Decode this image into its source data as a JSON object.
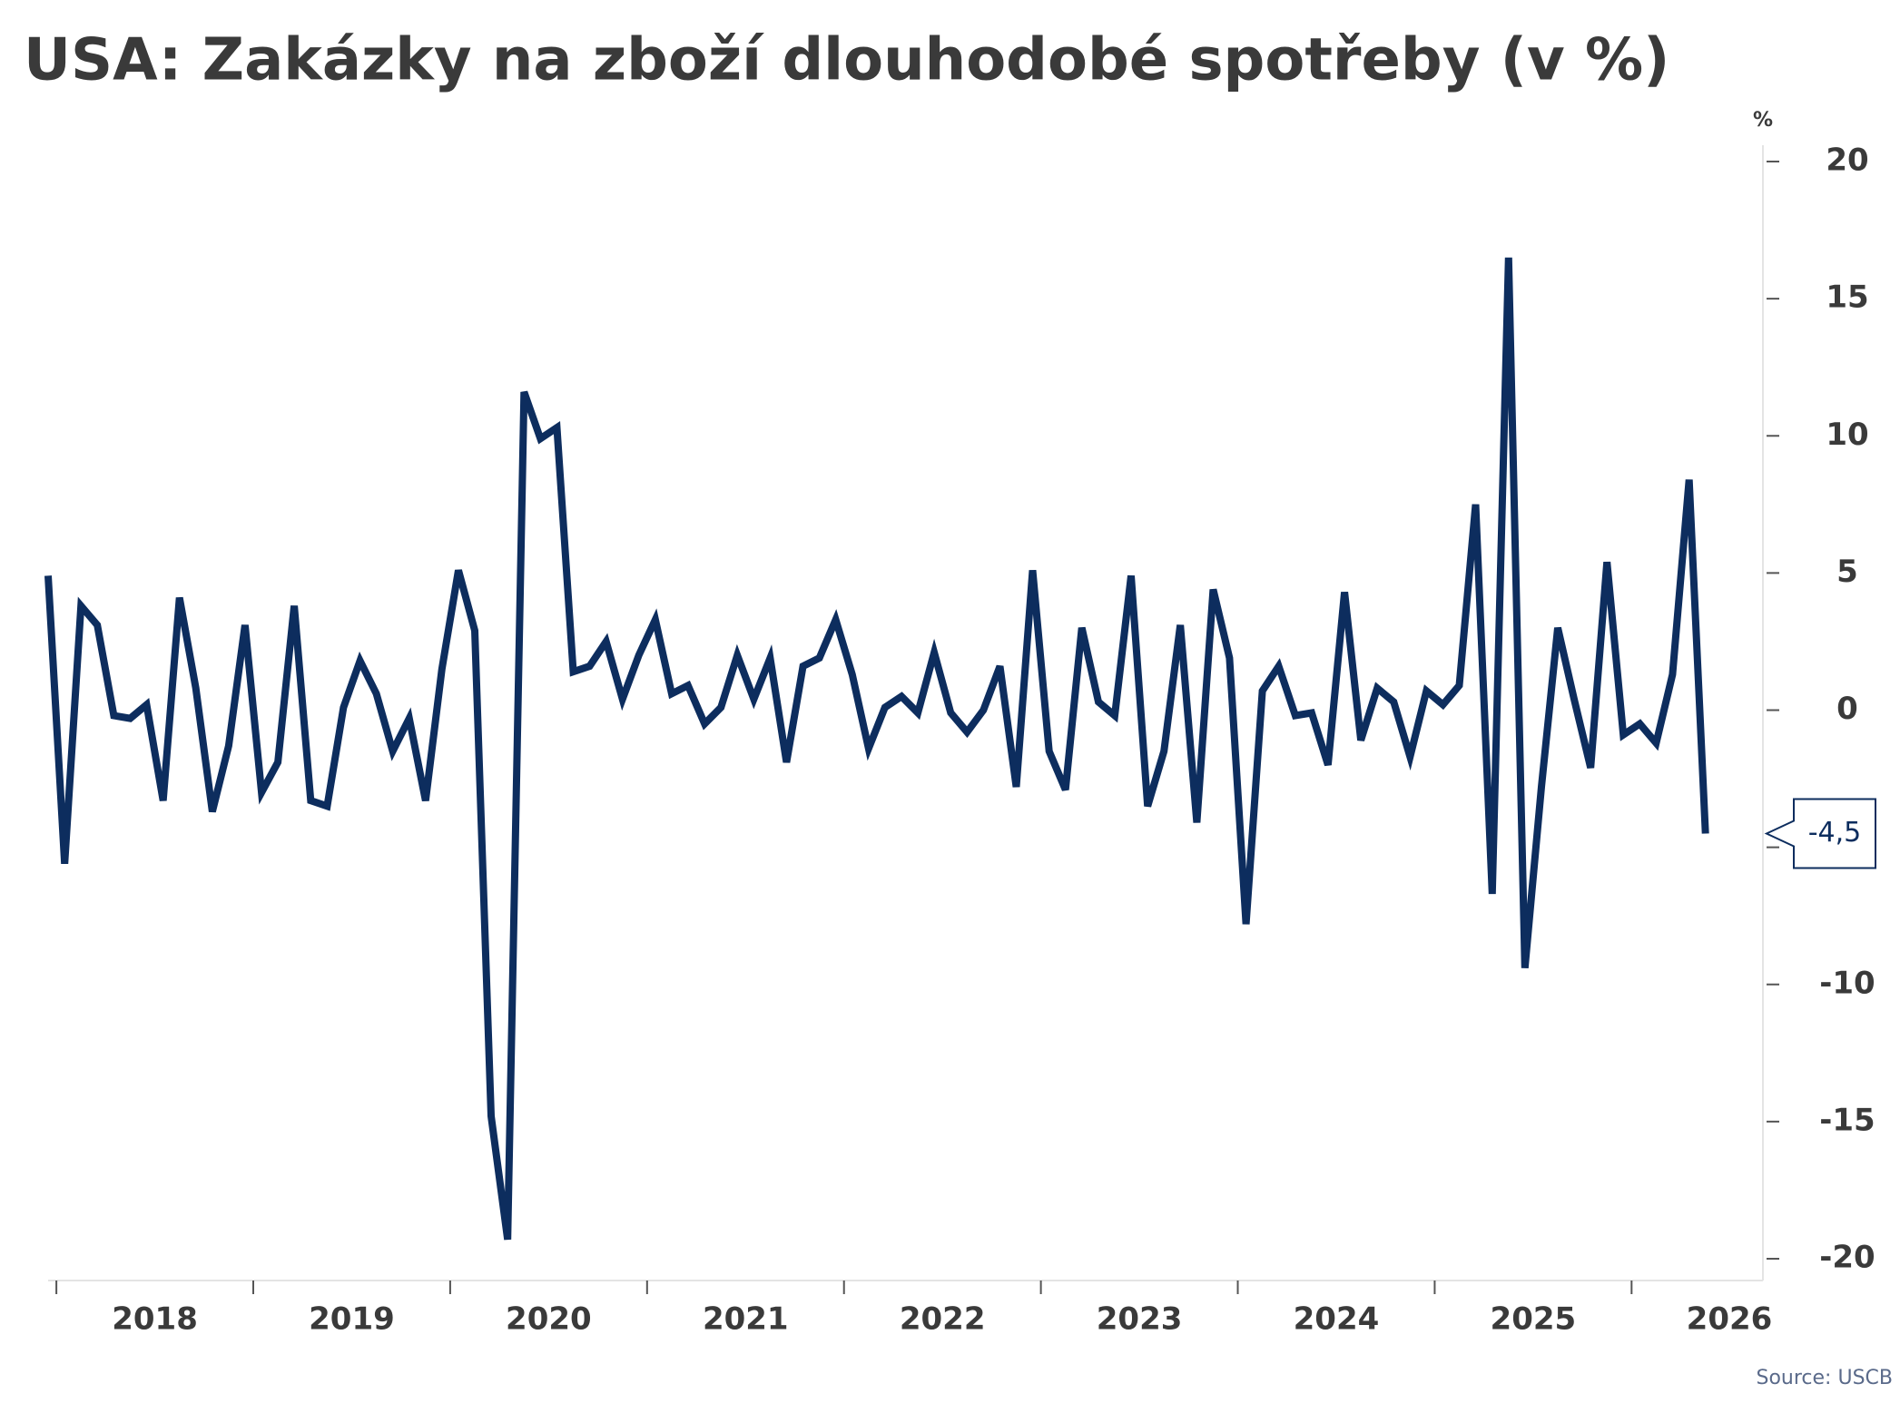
{
  "chart_data": {
    "type": "line",
    "title": "USA: Zakázky na zboží dlouhodobé spotřeby (v %)",
    "y_unit": "%",
    "source": "Source: USCB",
    "x": [
      2017.958,
      2018.042,
      2018.125,
      2018.208,
      2018.292,
      2018.375,
      2018.458,
      2018.542,
      2018.625,
      2018.708,
      2018.792,
      2018.875,
      2018.958,
      2019.042,
      2019.125,
      2019.208,
      2019.292,
      2019.375,
      2019.458,
      2019.542,
      2019.625,
      2019.708,
      2019.792,
      2019.875,
      2019.958,
      2020.042,
      2020.125,
      2020.208,
      2020.292,
      2020.375,
      2020.458,
      2020.542,
      2020.625,
      2020.708,
      2020.792,
      2020.875,
      2020.958,
      2021.042,
      2021.125,
      2021.208,
      2021.292,
      2021.375,
      2021.458,
      2021.542,
      2021.625,
      2021.708,
      2021.792,
      2021.875,
      2021.958,
      2022.042,
      2022.125,
      2022.208,
      2022.292,
      2022.375,
      2022.458,
      2022.542,
      2022.625,
      2022.708,
      2022.792,
      2022.875,
      2022.958,
      2023.042,
      2023.125,
      2023.208,
      2023.292,
      2023.375,
      2023.458,
      2023.542,
      2023.625,
      2023.708,
      2023.792,
      2023.875,
      2023.958,
      2024.042,
      2024.125,
      2024.208,
      2024.292,
      2024.375,
      2024.458,
      2024.542,
      2024.625,
      2024.708,
      2024.792,
      2024.875,
      2024.958,
      2025.042,
      2025.125,
      2025.208,
      2025.292,
      2025.375,
      2025.458,
      2025.542,
      2025.625,
      2025.708,
      2025.792,
      2025.875,
      2025.958,
      2026.042,
      2026.125,
      2026.208,
      2026.292,
      2026.375
    ],
    "series": [
      {
        "name": "Zakázky",
        "color": "#0d2d5e",
        "values": [
          4.9,
          -5.6,
          3.8,
          3.1,
          -0.2,
          -0.3,
          0.2,
          -3.3,
          4.1,
          0.8,
          -3.7,
          -1.3,
          3.1,
          -3.0,
          -1.9,
          3.8,
          -3.3,
          -3.5,
          0.1,
          1.8,
          0.6,
          -1.5,
          -0.3,
          -3.3,
          1.5,
          5.1,
          2.9,
          -14.8,
          -19.3,
          11.6,
          9.9,
          10.3,
          1.4,
          1.6,
          2.5,
          0.4,
          2.0,
          3.3,
          0.6,
          0.9,
          -0.5,
          0.1,
          2.0,
          0.4,
          1.9,
          -1.9,
          1.6,
          1.9,
          3.3,
          1.3,
          -1.4,
          0.1,
          0.5,
          -0.1,
          2.1,
          -0.1,
          -0.8,
          0.0,
          1.6,
          -2.8,
          5.1,
          -1.5,
          -2.9,
          3.0,
          0.3,
          -0.2,
          4.9,
          -3.5,
          -1.5,
          3.1,
          -4.1,
          4.4,
          1.9,
          -7.8,
          0.7,
          1.6,
          -0.2,
          -0.1,
          -2.0,
          4.3,
          -1.1,
          0.8,
          0.3,
          -1.7,
          0.7,
          0.2,
          0.9,
          7.5,
          -6.7,
          16.5,
          -9.4,
          -2.8,
          3.0,
          0.4,
          -2.1,
          5.4,
          -0.9,
          -0.5,
          -1.2,
          1.3,
          8.4,
          -4.5
        ],
        "value_labels": [
          null,
          null,
          null,
          null,
          null,
          null,
          null,
          null,
          null,
          null,
          null,
          null,
          null,
          null,
          null,
          null,
          null,
          null,
          null,
          null,
          null,
          null,
          null,
          null,
          null,
          null,
          null,
          null,
          null,
          null,
          null,
          null,
          null,
          null,
          null,
          null,
          null,
          null,
          null,
          null,
          null,
          null,
          null,
          null,
          null,
          null,
          null,
          null,
          null,
          null,
          null,
          null,
          null,
          null,
          null,
          null,
          null,
          null,
          null,
          null,
          null,
          null,
          null,
          null,
          null,
          null,
          null,
          null,
          null,
          null,
          null,
          null,
          null,
          null,
          null,
          null,
          null,
          null,
          null,
          null,
          null,
          null,
          null,
          null,
          null,
          null,
          null,
          null,
          null,
          null,
          null,
          null,
          null,
          null,
          null,
          null,
          null,
          null,
          null,
          null,
          null,
          "-4,5"
        ]
      }
    ],
    "xlim": [
      2017.958,
      2026.667
    ],
    "xticks": [
      2018,
      2019,
      2020,
      2021,
      2022,
      2023,
      2024,
      2025,
      2026
    ],
    "ylim": [
      -20,
      20
    ],
    "yticks": [
      -20,
      -15,
      -10,
      -5,
      0,
      5,
      10,
      15,
      20
    ],
    "y_axis_side": "right",
    "grid": false
  }
}
